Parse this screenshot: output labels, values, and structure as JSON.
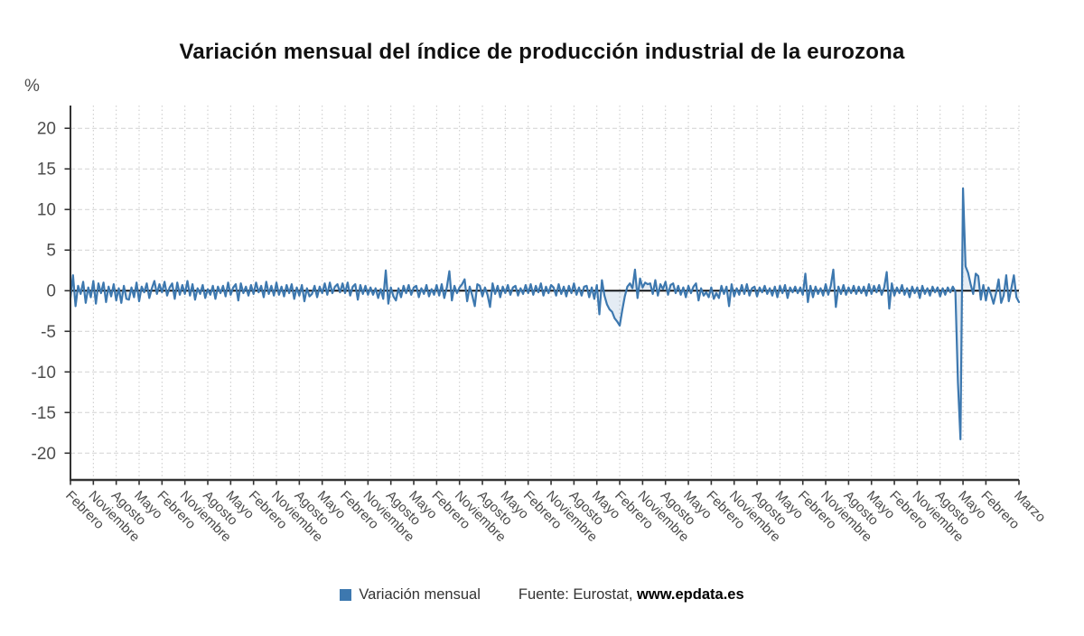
{
  "header": {
    "title": "Variación mensual del índice de producción industrial de la eurozona"
  },
  "footer": {
    "source_prefix": "Fuente: Eurostat, ",
    "source_site": "www.epdata.es"
  },
  "colors": {
    "line": "#3d78af",
    "area_fill": "rgba(61,120,175,0.14)",
    "axis": "#333333",
    "zero_line": "#111111",
    "grid_h": "#d2d2d2",
    "grid_v": "#c9c9c9",
    "tick_label": "#4d4d4d",
    "x_label": "#4a4a4a"
  },
  "chart_data": {
    "type": "area",
    "title": "Variación mensual del índice de producción industrial de la eurozona",
    "xlabel": "",
    "ylabel": "%",
    "grid": true,
    "legend_position": "bottom",
    "ylim": [
      -23.3,
      22.8
    ],
    "yticks": [
      20,
      15,
      10,
      5,
      0,
      -5,
      -10,
      -15,
      -20
    ],
    "x_tick_interval_months": 9,
    "x_tick_labels": [
      "Febrero",
      "Noviembre",
      "Agosto",
      "Mayo",
      "Febrero",
      "Noviembre",
      "Agosto",
      "Mayo",
      "Febrero",
      "Noviembre",
      "Agosto",
      "Mayo",
      "Febrero",
      "Noviembre",
      "Agosto",
      "Mayo",
      "Febrero",
      "Noviembre",
      "Agosto",
      "Mayo",
      "Febrero",
      "Noviembre",
      "Agosto",
      "Mayo",
      "Febrero",
      "Noviembre",
      "Agosto",
      "Mayo",
      "Febrero",
      "Noviembre",
      "Agosto",
      "Mayo",
      "Febrero",
      "Noviembre",
      "Agosto",
      "Mayo",
      "Febrero",
      "Noviembre",
      "Agosto",
      "Mayo",
      "Febrero",
      "Marzo"
    ],
    "series": [
      {
        "name": "Variación mensual",
        "color": "#3d78af",
        "values": [
          -0.9,
          1.9,
          -1.9,
          0.6,
          -0.4,
          1.1,
          -1.5,
          0.4,
          -0.8,
          1.2,
          -1.6,
          0.9,
          -0.3,
          1.0,
          -1.4,
          0.5,
          -0.7,
          0.8,
          -1.2,
          0.3,
          -1.5,
          0.6,
          -1.0,
          -1.1,
          0.4,
          -0.8,
          1.0,
          -1.3,
          0.5,
          -0.2,
          0.9,
          -0.9,
          0.3,
          1.2,
          -0.4,
          0.8,
          -0.2,
          1.1,
          -0.6,
          0.4,
          0.9,
          -1.0,
          1.0,
          -0.5,
          0.7,
          -0.4,
          1.2,
          -0.6,
          0.8,
          -1.1,
          0.3,
          -0.4,
          0.7,
          -0.9,
          0.2,
          -0.5,
          0.6,
          -1.0,
          0.5,
          -0.3,
          0.6,
          -0.7,
          1.0,
          -0.5,
          0.4,
          0.8,
          -1.2,
          0.9,
          -0.3,
          0.5,
          -0.6,
          0.7,
          -0.4,
          1.0,
          -0.2,
          0.6,
          -0.8,
          1.1,
          -0.4,
          0.6,
          -0.6,
          1.0,
          -0.5,
          0.5,
          -0.7,
          0.7,
          -0.3,
          0.8,
          -1.0,
          0.4,
          -0.6,
          0.7,
          -1.3,
          0.3,
          -0.7,
          -0.4,
          0.6,
          -0.8,
          0.5,
          -0.3,
          0.9,
          -0.5,
          1.0,
          -0.3,
          0.5,
          0.8,
          -0.2,
          0.9,
          -0.3,
          1.0,
          -0.6,
          0.5,
          0.8,
          -1.1,
          0.7,
          -0.4,
          0.6,
          -0.5,
          0.4,
          -0.5,
          0.3,
          -0.9,
          0.2,
          -1.0,
          2.5,
          -1.6,
          0.4,
          -0.7,
          -1.2,
          0.3,
          -0.8,
          0.6,
          -0.3,
          0.7,
          -0.5,
          0.4,
          0.6,
          -0.8,
          0.3,
          -0.4,
          0.7,
          -0.7,
          0.2,
          -0.5,
          0.7,
          -0.6,
          0.8,
          -0.9,
          0.4,
          2.4,
          -1.2,
          0.6,
          -0.3,
          0.4,
          0.8,
          1.4,
          -1.3,
          0.5,
          -0.6,
          -1.9,
          0.8,
          0.6,
          -0.7,
          0.4,
          -0.5,
          -2.0,
          0.9,
          -0.4,
          0.6,
          -0.8,
          0.5,
          -0.3,
          0.7,
          -0.5,
          0.4,
          0.6,
          -0.6,
          0.3,
          -0.4,
          0.7,
          -0.3,
          0.8,
          -0.5,
          0.6,
          -0.2,
          0.9,
          -0.6,
          0.5,
          -0.3,
          0.7,
          0.4,
          -0.6,
          0.8,
          -0.4,
          0.5,
          -0.7,
          0.6,
          -0.3,
          0.9,
          -0.5,
          0.4,
          -0.6,
          0.5,
          0.6,
          -0.8,
          0.4,
          -1.0,
          0.7,
          -2.9,
          1.3,
          -0.6,
          -1.7,
          -2.3,
          -2.6,
          -3.4,
          -3.8,
          -4.3,
          -2.4,
          -0.7,
          0.5,
          0.9,
          0.3,
          2.6,
          -0.9,
          1.5,
          0.4,
          1.0,
          0.8,
          0.9,
          -0.4,
          1.3,
          -0.6,
          0.8,
          0.2,
          1.1,
          -0.5,
          0.7,
          0.9,
          -0.3,
          0.6,
          -0.5,
          0.4,
          -0.8,
          0.6,
          -0.3,
          0.5,
          0.9,
          -1.2,
          0.3,
          -0.6,
          -0.2,
          -0.8,
          0.4,
          -1.0,
          -0.3,
          -0.9,
          0.6,
          -0.4,
          0.5,
          -1.9,
          0.8,
          -0.7,
          0.3,
          -0.5,
          0.7,
          -0.4,
          0.8,
          -0.6,
          0.3,
          0.5,
          -0.7,
          0.4,
          -0.2,
          0.6,
          -0.4,
          0.3,
          -0.6,
          0.5,
          -0.8,
          0.6,
          -0.3,
          0.7,
          -0.9,
          0.4,
          -0.2,
          0.5,
          -0.3,
          0.4,
          -0.5,
          2.1,
          -1.4,
          0.6,
          -0.8,
          0.5,
          -0.4,
          0.3,
          -0.6,
          0.8,
          -0.5,
          0.6,
          2.6,
          -2.0,
          0.5,
          -0.4,
          0.7,
          -0.5,
          0.4,
          -0.3,
          0.6,
          -0.4,
          0.5,
          -0.3,
          0.5,
          -0.6,
          0.8,
          -0.4,
          0.6,
          -0.2,
          0.7,
          -0.5,
          0.4,
          2.3,
          -2.2,
          0.9,
          -0.6,
          0.4,
          -0.3,
          0.7,
          -0.5,
          0.3,
          -0.8,
          0.5,
          -0.3,
          0.4,
          -0.9,
          0.6,
          -0.4,
          0.3,
          -0.6,
          0.5,
          -0.2,
          0.4,
          -0.7,
          0.3,
          -0.5,
          0.4,
          -0.2,
          0.5,
          -0.1,
          -11.3,
          -18.3,
          12.6,
          3.0,
          2.2,
          0.8,
          -0.4,
          2.1,
          1.8,
          -1.1,
          0.7,
          -1.2,
          0.4,
          -0.5,
          -1.6,
          -0.3,
          1.4,
          -1.5,
          -0.6,
          1.9,
          -1.3,
          0.3,
          1.9,
          -0.8,
          -1.4
        ]
      }
    ]
  }
}
